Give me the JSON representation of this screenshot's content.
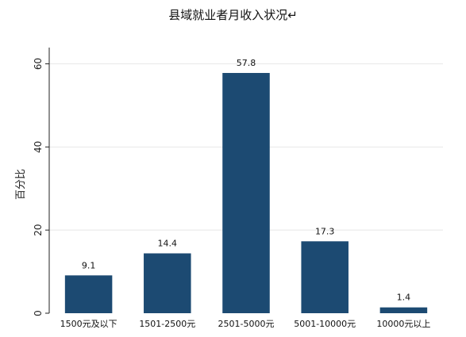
{
  "chart_data": {
    "type": "bar",
    "title": "县域就业者月收入状况↵",
    "xlabel": "",
    "ylabel": "百分比",
    "categories": [
      "1500元及以下",
      "1501-2500元",
      "2501-5000元",
      "5001-10000元",
      "10000元以上"
    ],
    "values": [
      9.1,
      14.4,
      57.8,
      17.3,
      1.4
    ],
    "data_labels": [
      "9.1",
      "14.4",
      "57.8",
      "17.3",
      "1.4"
    ],
    "yticks": [
      0,
      20,
      40,
      60
    ],
    "ytick_labels": [
      "0",
      "20",
      "40",
      "60"
    ],
    "ylim": [
      0,
      62
    ],
    "grid": true,
    "bar_color": "#1c4a72",
    "grid_color": "#e8e8e8"
  }
}
